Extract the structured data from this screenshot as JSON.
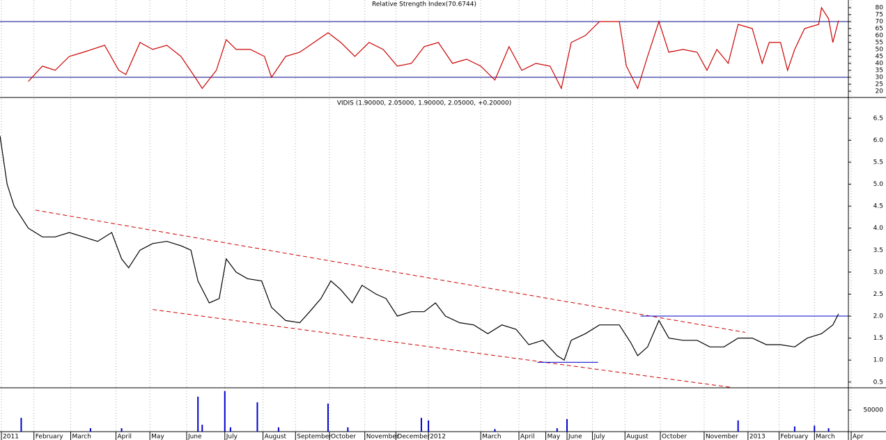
{
  "chart_data": [
    {
      "type": "line",
      "title": "Relative Strength Index(70.6744)",
      "x": [
        20,
        30,
        39,
        49,
        59,
        74,
        84,
        89,
        99,
        108,
        118,
        128,
        138,
        143,
        153,
        160,
        167,
        177,
        187,
        192,
        202,
        212,
        222,
        232,
        241,
        251,
        261,
        271,
        281,
        291,
        300,
        310,
        320,
        330,
        340,
        350,
        360,
        369,
        379,
        389,
        397,
        404,
        414,
        424,
        438,
        443,
        451,
        458,
        466,
        473,
        483,
        493,
        500,
        507,
        515,
        522,
        532,
        539,
        544,
        552,
        557,
        562,
        569,
        579,
        581,
        586,
        589,
        593
      ],
      "values": [
        27,
        38,
        35,
        45,
        48,
        53,
        35,
        32,
        55,
        50,
        53,
        45,
        30,
        22,
        35,
        57,
        50,
        50,
        45,
        30,
        45,
        48,
        55,
        62,
        55,
        45,
        55,
        50,
        38,
        40,
        52,
        55,
        40,
        43,
        38,
        28,
        52,
        35,
        40,
        38,
        22,
        55,
        60,
        70,
        70,
        38,
        22,
        45,
        70,
        48,
        50,
        48,
        35,
        50,
        40,
        68,
        65,
        40,
        55,
        55,
        35,
        50,
        65,
        68,
        80,
        72,
        55,
        70.6744
      ],
      "color": "#cc0000",
      "levels": [
        70,
        30
      ],
      "level_color": "#00008b",
      "xlim": [
        0,
        600
      ],
      "ylim": [
        15.5,
        85.5
      ],
      "yticks": [
        20,
        25,
        30,
        35,
        40,
        45,
        50,
        55,
        60,
        65,
        70,
        75,
        80
      ]
    },
    {
      "type": "line",
      "title": "VIDIS (1.90000, 2.05000, 1.90000, 2.05000, +0.20000)",
      "x": [
        0,
        5,
        10,
        20,
        30,
        39,
        49,
        59,
        69,
        79,
        86,
        91,
        99,
        108,
        118,
        128,
        135,
        140,
        148,
        155,
        160,
        167,
        175,
        185,
        192,
        202,
        212,
        219,
        227,
        234,
        241,
        249,
        256,
        266,
        273,
        281,
        291,
        300,
        308,
        315,
        325,
        335,
        345,
        355,
        365,
        374,
        384,
        394,
        399,
        404,
        414,
        424,
        438,
        446,
        451,
        458,
        466,
        473,
        483,
        493,
        502,
        512,
        522,
        532,
        542,
        552,
        562,
        571,
        581,
        589,
        593
      ],
      "values": [
        6.1,
        5.0,
        4.5,
        4.0,
        3.8,
        3.8,
        3.9,
        3.8,
        3.7,
        3.9,
        3.3,
        3.1,
        3.5,
        3.65,
        3.7,
        3.6,
        3.5,
        2.8,
        2.3,
        2.4,
        3.3,
        3.0,
        2.85,
        2.8,
        2.2,
        1.9,
        1.85,
        2.1,
        2.4,
        2.8,
        2.6,
        2.3,
        2.7,
        2.5,
        2.4,
        2.0,
        2.1,
        2.1,
        2.3,
        2.0,
        1.85,
        1.8,
        1.6,
        1.8,
        1.7,
        1.35,
        1.45,
        1.1,
        1.0,
        1.45,
        1.6,
        1.8,
        1.8,
        1.4,
        1.1,
        1.3,
        1.9,
        1.5,
        1.45,
        1.45,
        1.3,
        1.3,
        1.5,
        1.5,
        1.35,
        1.35,
        1.3,
        1.5,
        1.6,
        1.8,
        2.05
      ],
      "color": "#000000",
      "trendlines": [
        {
          "x": [
            25,
            527
          ],
          "y": [
            4.41,
            1.63
          ],
          "color": "#cc0000",
          "dashed": true
        },
        {
          "x": [
            108,
            517
          ],
          "y": [
            2.15,
            0.38
          ],
          "color": "#cc0000",
          "dashed": true
        },
        {
          "x": [
            453,
            600
          ],
          "y": [
            2.0,
            2.0
          ],
          "color": "#0000cc",
          "dashed": false
        },
        {
          "x": [
            380,
            423
          ],
          "y": [
            0.95,
            0.95
          ],
          "color": "#0000cc",
          "dashed": false
        }
      ],
      "xlim": [
        0,
        600
      ],
      "ylim": [
        0.37,
        6.94
      ],
      "yticks": [
        0.5,
        {
          "value": 1,
          "label": "1.0"
        },
        1.5,
        {
          "value": 2,
          "label": "2.0"
        },
        2.5,
        {
          "value": 3,
          "label": "3.0"
        },
        3.5,
        {
          "value": 4,
          "label": "4.0"
        },
        4.5,
        {
          "value": 5,
          "label": "5.0"
        },
        5.5,
        {
          "value": 6,
          "label": "6.0"
        },
        6.5
      ]
    },
    {
      "type": "bar",
      "x": [
        15,
        64,
        86,
        140,
        143,
        159,
        163,
        182,
        197,
        232,
        246,
        298,
        303,
        350,
        394,
        401,
        522,
        562,
        576,
        586
      ],
      "values": [
        32000,
        8000,
        8000,
        81000,
        16000,
        94000,
        10000,
        68000,
        10000,
        65000,
        10000,
        32000,
        26000,
        6000,
        8000,
        29000,
        26000,
        12000,
        14000,
        8000
      ],
      "color": "#0000cc",
      "grid": true,
      "xlim": [
        0,
        600
      ],
      "ylim": [
        0,
        101600
      ],
      "yticks": [
        50000
      ],
      "xticks": [
        {
          "value": 1,
          "label": "2011"
        },
        {
          "value": 24,
          "label": "February"
        },
        {
          "value": 50,
          "label": "March"
        },
        {
          "value": 82,
          "label": "April"
        },
        {
          "value": 106,
          "label": "May"
        },
        {
          "value": 132,
          "label": "June"
        },
        {
          "value": 159,
          "label": "July"
        },
        {
          "value": 186,
          "label": "August"
        },
        {
          "value": 209,
          "label": "September"
        },
        {
          "value": 233,
          "label": "October"
        },
        {
          "value": 258,
          "label": "November"
        },
        {
          "value": 280,
          "label": "December"
        },
        {
          "value": 303,
          "label": "2012"
        },
        {
          "value": 340,
          "label": "March"
        },
        {
          "value": 367,
          "label": "April"
        },
        {
          "value": 386,
          "label": "May"
        },
        {
          "value": 401,
          "label": "June"
        },
        {
          "value": 419,
          "label": "July"
        },
        {
          "value": 442,
          "label": "August"
        },
        {
          "value": 467,
          "label": "October"
        },
        {
          "value": 498,
          "label": "November"
        },
        {
          "value": 529,
          "label": "2013"
        },
        {
          "value": 551,
          "label": "February"
        },
        {
          "value": 576,
          "label": "March"
        },
        {
          "value": 602,
          "label": "Apr"
        }
      ]
    }
  ]
}
